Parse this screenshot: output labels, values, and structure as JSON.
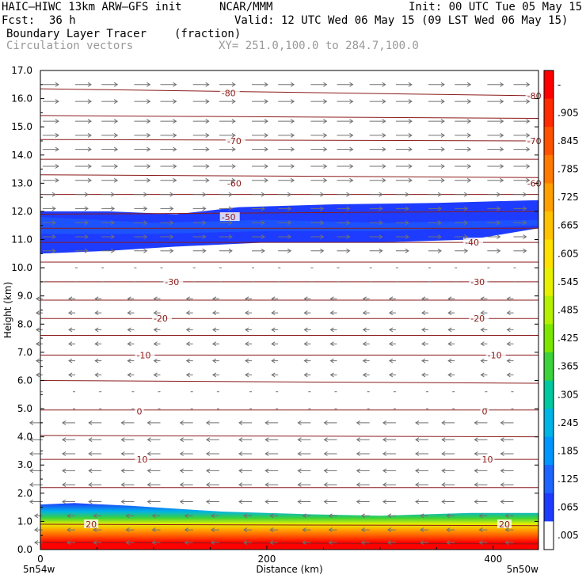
{
  "header": {
    "model": "HAIC–HIWC 13km ARW–GFS init",
    "org": "NCAR/MMM",
    "init": "Init: 00 UTC Tue 05 May 15",
    "fcst_label": "Fcst:",
    "fcst_value": "36 h",
    "valid": "Valid: 12 UTC Wed 06 May 15 (09 LST Wed 06 May 15)",
    "field": "Boundary Layer Tracer",
    "units": "(fraction)",
    "vectors": "Circulation vectors",
    "xy": "XY= 251.0,100.0 to 284.7,100.0"
  },
  "chart_data": {
    "type": "heatmap",
    "ylabel": "Height (km)",
    "xlabel": "Distance (km)",
    "ylim": [
      0,
      17
    ],
    "xlim": [
      0,
      440
    ],
    "y_ticks": [
      "0.0",
      "1.0",
      "2.0",
      "3.0",
      "4.0",
      "5.0",
      "6.0",
      "7.0",
      "8.0",
      "9.0",
      "10.0",
      "11.0",
      "12.0",
      "13.0",
      "14.0",
      "15.0",
      "16.0",
      "17.0"
    ],
    "x_ticks": [
      {
        "value": 0,
        "label": "0"
      },
      {
        "value": 200,
        "label": "200"
      },
      {
        "value": 400,
        "label": "400"
      }
    ],
    "left_end_label": "5n54w",
    "right_end_label": "5n50w",
    "contour_labels": [
      {
        "text": "-80",
        "x": 160,
        "y": 16.2
      },
      {
        "text": "-80",
        "x": 430,
        "y": 16.1
      },
      {
        "text": "-70",
        "x": 165,
        "y": 14.5
      },
      {
        "text": "-70",
        "x": 430,
        "y": 14.5
      },
      {
        "text": "-60",
        "x": 165,
        "y": 13.0
      },
      {
        "text": "-60",
        "x": 430,
        "y": 13.0
      },
      {
        "text": "-50",
        "x": 160,
        "y": 11.8
      },
      {
        "text": "-40",
        "x": 375,
        "y": 10.9
      },
      {
        "text": "-30",
        "x": 110,
        "y": 9.5
      },
      {
        "text": "-30",
        "x": 380,
        "y": 9.5
      },
      {
        "text": "-20",
        "x": 100,
        "y": 8.2
      },
      {
        "text": "-20",
        "x": 380,
        "y": 8.2
      },
      {
        "text": "-10",
        "x": 85,
        "y": 6.9
      },
      {
        "text": "-10",
        "x": 395,
        "y": 6.9
      },
      {
        "text": "0",
        "x": 85,
        "y": 4.9
      },
      {
        "text": "0",
        "x": 390,
        "y": 4.9
      },
      {
        "text": "10",
        "x": 85,
        "y": 3.2
      },
      {
        "text": "10",
        "x": 390,
        "y": 3.2
      },
      {
        "text": "20",
        "x": 40,
        "y": 0.9
      },
      {
        "text": "20",
        "x": 405,
        "y": 0.9
      }
    ],
    "colorbar": {
      "labels": [
        "-",
        ".905",
        ".845",
        ".785",
        ".725",
        ".665",
        ".605",
        ".545",
        ".485",
        ".425",
        ".365",
        ".305",
        ".245",
        ".185",
        ".125",
        ".065",
        ".005"
      ],
      "colors": [
        "#ff0000",
        "#ff2a00",
        "#ff5200",
        "#ff7a00",
        "#ffa000",
        "#ffc200",
        "#ffe000",
        "#e6f000",
        "#b4f000",
        "#7ce600",
        "#3cd23c",
        "#00c8a0",
        "#00b4e6",
        "#0096ff",
        "#1e64ff",
        "#1e3cff",
        "#ffffff"
      ]
    }
  }
}
